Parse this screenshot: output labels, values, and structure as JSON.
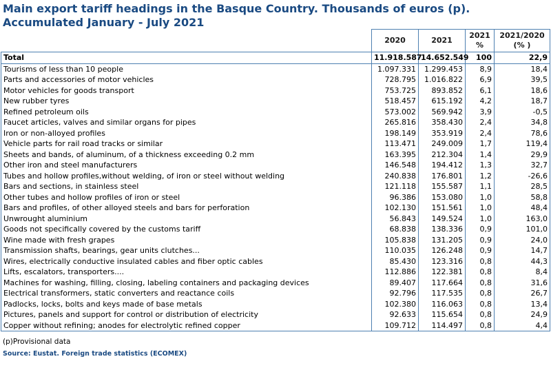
{
  "title": "Main export tariff headings in the Basque Country. Thousands of euros (p). Accumulated January - July 2021",
  "columns": {
    "c2020": "2020",
    "c2021": "2021",
    "pct_line1": "2021",
    "pct_line2": "%",
    "var_line1": "2021/2020",
    "var_line2": "(% )"
  },
  "total": {
    "label": "Total",
    "v2020": "11.918.587",
    "v2021": "14.652.549",
    "pct": "100",
    "var": "22,9"
  },
  "rows": [
    {
      "label": "Tourisms of less than 10 people",
      "v2020": "1.097.331",
      "v2021": "1.299.453",
      "pct": "8,9",
      "var": "18,4"
    },
    {
      "label": "Parts and accessories of motor vehicles",
      "v2020": "728.795",
      "v2021": "1.016.822",
      "pct": "6,9",
      "var": "39,5"
    },
    {
      "label": "Motor vehicles for goods transport",
      "v2020": "753.725",
      "v2021": "893.852",
      "pct": "6,1",
      "var": "18,6"
    },
    {
      "label": "New rubber tyres",
      "v2020": "518.457",
      "v2021": "615.192",
      "pct": "4,2",
      "var": "18,7"
    },
    {
      "label": "Refined petroleum oils",
      "v2020": "573.002",
      "v2021": "569.942",
      "pct": "3,9",
      "var": "-0,5"
    },
    {
      "label": "Faucet articles, valves and similar organs for pipes",
      "v2020": "265.816",
      "v2021": "358.430",
      "pct": "2,4",
      "var": "34,8"
    },
    {
      "label": "Iron or non-alloyed profiles",
      "v2020": "198.149",
      "v2021": "353.919",
      "pct": "2,4",
      "var": "78,6"
    },
    {
      "label": "Vehicle parts for rail road tracks or similar",
      "v2020": "113.471",
      "v2021": "249.009",
      "pct": "1,7",
      "var": "119,4"
    },
    {
      "label": "Sheets and bands, of aluminum, of a thickness exceeding 0.2 mm",
      "v2020": "163.395",
      "v2021": "212.304",
      "pct": "1,4",
      "var": "29,9"
    },
    {
      "label": "Other iron and steel manufacturers",
      "v2020": "146.548",
      "v2021": "194.412",
      "pct": "1,3",
      "var": "32,7"
    },
    {
      "label": "Tubes and hollow profiles,without welding, of iron or steel without welding",
      "v2020": "240.838",
      "v2021": "176.801",
      "pct": "1,2",
      "var": "-26,6"
    },
    {
      "label": "Bars and sections, in stainless steel",
      "v2020": "121.118",
      "v2021": "155.587",
      "pct": "1,1",
      "var": "28,5"
    },
    {
      "label": "Other tubes and hollow profiles of iron or steel",
      "v2020": "96.386",
      "v2021": "153.080",
      "pct": "1,0",
      "var": "58,8"
    },
    {
      "label": "Bars and profiles, of other alloyed steels and bars for perforation",
      "v2020": "102.130",
      "v2021": "151.561",
      "pct": "1,0",
      "var": "48,4"
    },
    {
      "label": "Unwrought aluminium",
      "v2020": "56.843",
      "v2021": "149.524",
      "pct": "1,0",
      "var": "163,0"
    },
    {
      "label": "Goods not specifically covered by the customs tariff",
      "v2020": "68.838",
      "v2021": "138.336",
      "pct": "0,9",
      "var": "101,0"
    },
    {
      "label": "Wine made with fresh grapes",
      "v2020": "105.838",
      "v2021": "131.205",
      "pct": "0,9",
      "var": "24,0"
    },
    {
      "label": "Transmission shafts, bearings, gear units clutches...",
      "v2020": "110.035",
      "v2021": "126.248",
      "pct": "0,9",
      "var": "14,7"
    },
    {
      "label": "Wires, electrically conductive insulated cables and fiber optic cables",
      "v2020": "85.430",
      "v2021": "123.316",
      "pct": "0,8",
      "var": "44,3"
    },
    {
      "label": "Lifts, escalators, transporters....",
      "v2020": "112.886",
      "v2021": "122.381",
      "pct": "0,8",
      "var": "8,4"
    },
    {
      "label": "Machines for washing, filling, closing, labeling containers and packaging devices",
      "v2020": "89.407",
      "v2021": "117.664",
      "pct": "0,8",
      "var": "31,6"
    },
    {
      "label": "Electrical transformers, static converters and reactance coils",
      "v2020": "92.796",
      "v2021": "117.535",
      "pct": "0,8",
      "var": "26,7"
    },
    {
      "label": "Padlocks, locks, bolts and keys made of base metals",
      "v2020": "102.380",
      "v2021": "116.063",
      "pct": "0,8",
      "var": "13,4"
    },
    {
      "label": "Pictures, panels and support for control or distribution of electricity",
      "v2020": "92.633",
      "v2021": "115.654",
      "pct": "0,8",
      "var": "24,9"
    },
    {
      "label": "Copper without refining; anodes for electrolytic refined copper",
      "v2020": "109.712",
      "v2021": "114.497",
      "pct": "0,8",
      "var": "4,4"
    }
  ],
  "footnote": "(p)Provisional data",
  "source": "Source: Eustat. Foreign trade statistics (ECOMEX)"
}
